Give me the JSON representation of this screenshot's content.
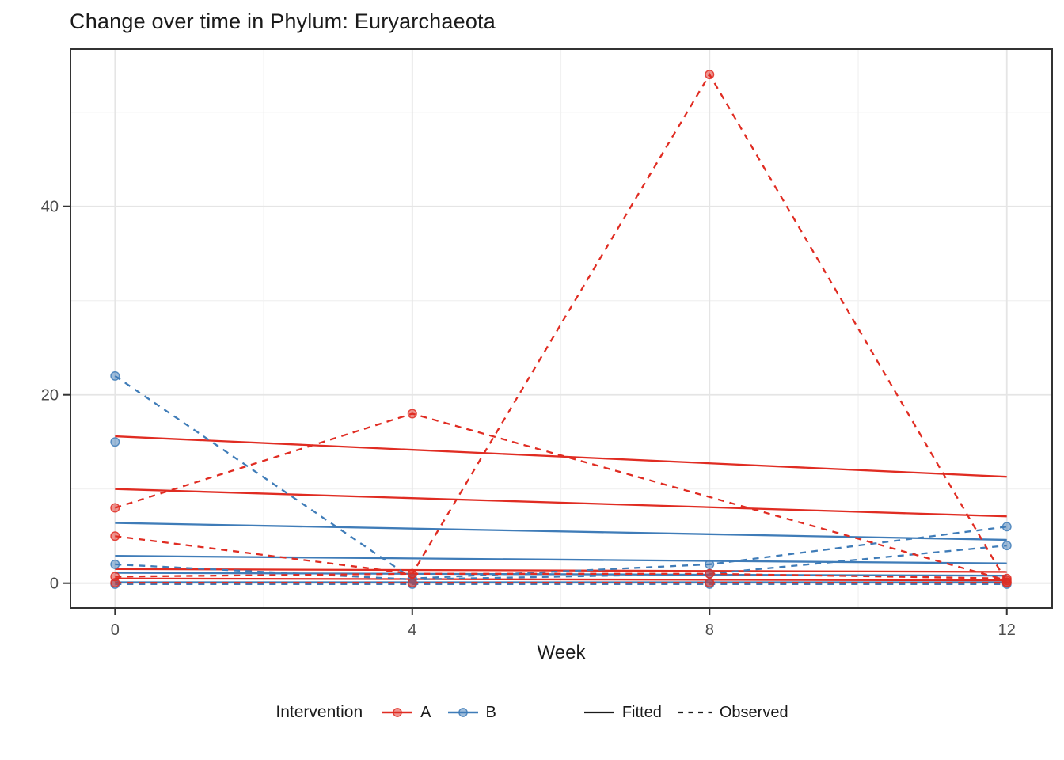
{
  "title": "Change over time in Phylum: Euryarchaeota",
  "axes": {
    "x": {
      "label": "Week",
      "ticks": [
        0,
        4,
        8,
        12
      ],
      "minor_ticks": [
        2,
        6,
        10
      ],
      "range": [
        -0.6,
        12.61
      ]
    },
    "y": {
      "label": "",
      "ticks": [
        0,
        20,
        40
      ],
      "minor_ticks": [
        10,
        30,
        50
      ],
      "range": [
        -2.63,
        56.7
      ]
    }
  },
  "legend": {
    "color_title": "Intervention",
    "color_items": [
      {
        "label": "A",
        "color": "#E02C22"
      },
      {
        "label": "B",
        "color": "#3F7CB8"
      }
    ],
    "linetype_items": [
      {
        "label": "Fitted",
        "dash": "solid"
      },
      {
        "label": "Observed",
        "dash": "dashed"
      }
    ]
  },
  "colors": {
    "A": "#E02C22",
    "B": "#3F7CB8",
    "axis_text": "#4d4d4d",
    "panel_border": "#333333",
    "grid_major": "#e5e5e5",
    "grid_minor": "#f1f1f1",
    "legend_key_line": "#1a1a1a"
  },
  "chart_data": {
    "type": "line",
    "title": "Change over time in Phylum: Euryarchaeota",
    "xlabel": "Week",
    "ylabel": "",
    "x": [
      0,
      4,
      8,
      12
    ],
    "xlim": [
      -0.6,
      12.61
    ],
    "ylim": [
      -2.63,
      56.7
    ],
    "grid": "on",
    "legend_position": "bottom",
    "series": [
      {
        "id": "A-subj1",
        "intervention": "A",
        "observed": [
          8,
          18,
          null,
          0.3
        ],
        "fitted": {
          "week0": 10,
          "week12": 7.1
        }
      },
      {
        "id": "A-subj2",
        "intervention": "A",
        "observed": [
          5,
          1,
          54,
          0.1
        ],
        "fitted": {
          "week0": 15.6,
          "week12": 11.3
        }
      },
      {
        "id": "A-subj3",
        "intervention": "A",
        "observed": [
          0.7,
          1,
          1,
          0.5
        ],
        "fitted": {
          "week0": 1.5,
          "week12": 1.2
        }
      },
      {
        "id": "A-subj4",
        "intervention": "A",
        "observed": [
          0.05,
          0.05,
          0.05,
          0.05
        ],
        "fitted": {
          "week0": 0.5,
          "week12": 0.3
        }
      },
      {
        "id": "B-subj1",
        "intervention": "B",
        "observed": [
          22,
          0.5,
          2,
          6
        ],
        "fitted": {
          "week0": 6.4,
          "week12": 4.6
        }
      },
      {
        "id": "B-subj2",
        "intervention": "B",
        "observed": [
          15,
          null,
          null,
          null
        ],
        "fitted": {
          "week0": 2.9,
          "week12": 2.1
        }
      },
      {
        "id": "B-subj3",
        "intervention": "B",
        "observed": [
          2,
          0.4,
          1,
          4
        ],
        "fitted": {
          "week0": 1.1,
          "week12": 0.8
        }
      },
      {
        "id": "B-subj4",
        "intervention": "B",
        "observed": [
          -0.1,
          -0.1,
          -0.1,
          -0.1
        ],
        "fitted": {
          "week0": 0.1,
          "week12": 0.1
        }
      }
    ]
  }
}
